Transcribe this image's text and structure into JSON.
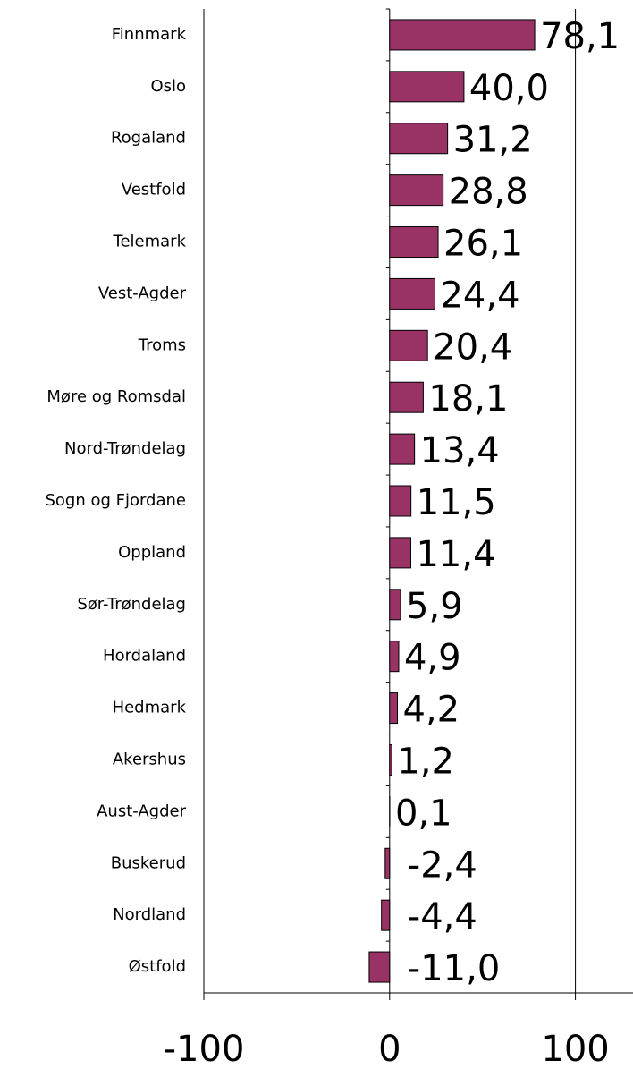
{
  "chart_data": {
    "type": "hbar",
    "categories": [
      "Finnmark",
      "Oslo",
      "Rogaland",
      "Vestfold",
      "Telemark",
      "Vest-Agder",
      "Troms",
      "Møre og Romsdal",
      "Nord-Trøndelag",
      "Sogn og Fjordane",
      "Oppland",
      "Sør-Trøndelag",
      "Hordaland",
      "Hedmark",
      "Akershus",
      "Aust-Agder",
      "Buskerud",
      "Nordland",
      "Østfold"
    ],
    "values": [
      78.1,
      40.0,
      31.2,
      28.8,
      26.1,
      24.4,
      20.4,
      18.1,
      13.4,
      11.5,
      11.4,
      5.9,
      4.9,
      4.2,
      1.2,
      0.1,
      -2.4,
      -4.4,
      -11.0
    ],
    "value_labels": [
      "78,1",
      "40,0",
      "31,2",
      "28,8",
      "26,1",
      "24,4",
      "20,4",
      "18,1",
      "13,4",
      "11,5",
      "11,4",
      "5,9",
      "4,9",
      "4,2",
      "1,2",
      "0,1",
      "-2,4",
      "-4,4",
      "-11,0"
    ],
    "color": "#993366",
    "xlim": [
      -100,
      131
    ],
    "xticks": [
      -100,
      0,
      100
    ],
    "grid": true
  }
}
